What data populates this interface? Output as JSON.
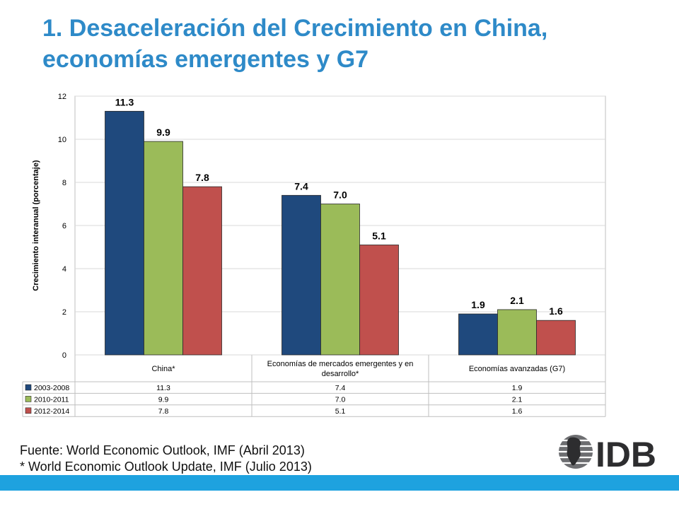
{
  "slide": {
    "title_line1": "1. Desaceleración del Crecimiento en China,",
    "title_line2": "economías emergentes y G7",
    "source_line1": "Fuente: World Economic Outlook, IMF (Abril 2013)",
    "source_line2": "* World Economic Outlook Update, IMF (Julio 2013)",
    "logo_text": "IDB",
    "colors": {
      "title": "#2e8ac8",
      "band": "#1ea2df"
    }
  },
  "chart_data": {
    "type": "bar",
    "ylabel": "Crecimiento interanual (porcentaje)",
    "ylim": [
      0,
      12
    ],
    "yticks": [
      0,
      2,
      4,
      6,
      8,
      10,
      12
    ],
    "grid": true,
    "categories": [
      "China*",
      "Economías de mercados emergentes y en desarrollo*",
      "Economías avanzadas (G7)"
    ],
    "series": [
      {
        "name": "2003-2008",
        "color": "#1f497d",
        "values": [
          11.3,
          7.4,
          1.9
        ],
        "labels": [
          "11.3",
          "7.4",
          "1.9"
        ]
      },
      {
        "name": "2010-2011",
        "color": "#9bbb59",
        "values": [
          9.9,
          7.0,
          2.1
        ],
        "labels": [
          "9.9",
          "7.0",
          "2.1"
        ]
      },
      {
        "name": "2012-2014",
        "color": "#c0504d",
        "values": [
          7.8,
          5.1,
          1.6
        ],
        "labels": [
          "7.8",
          "5.1",
          "1.6"
        ]
      }
    ],
    "data_table": true
  }
}
